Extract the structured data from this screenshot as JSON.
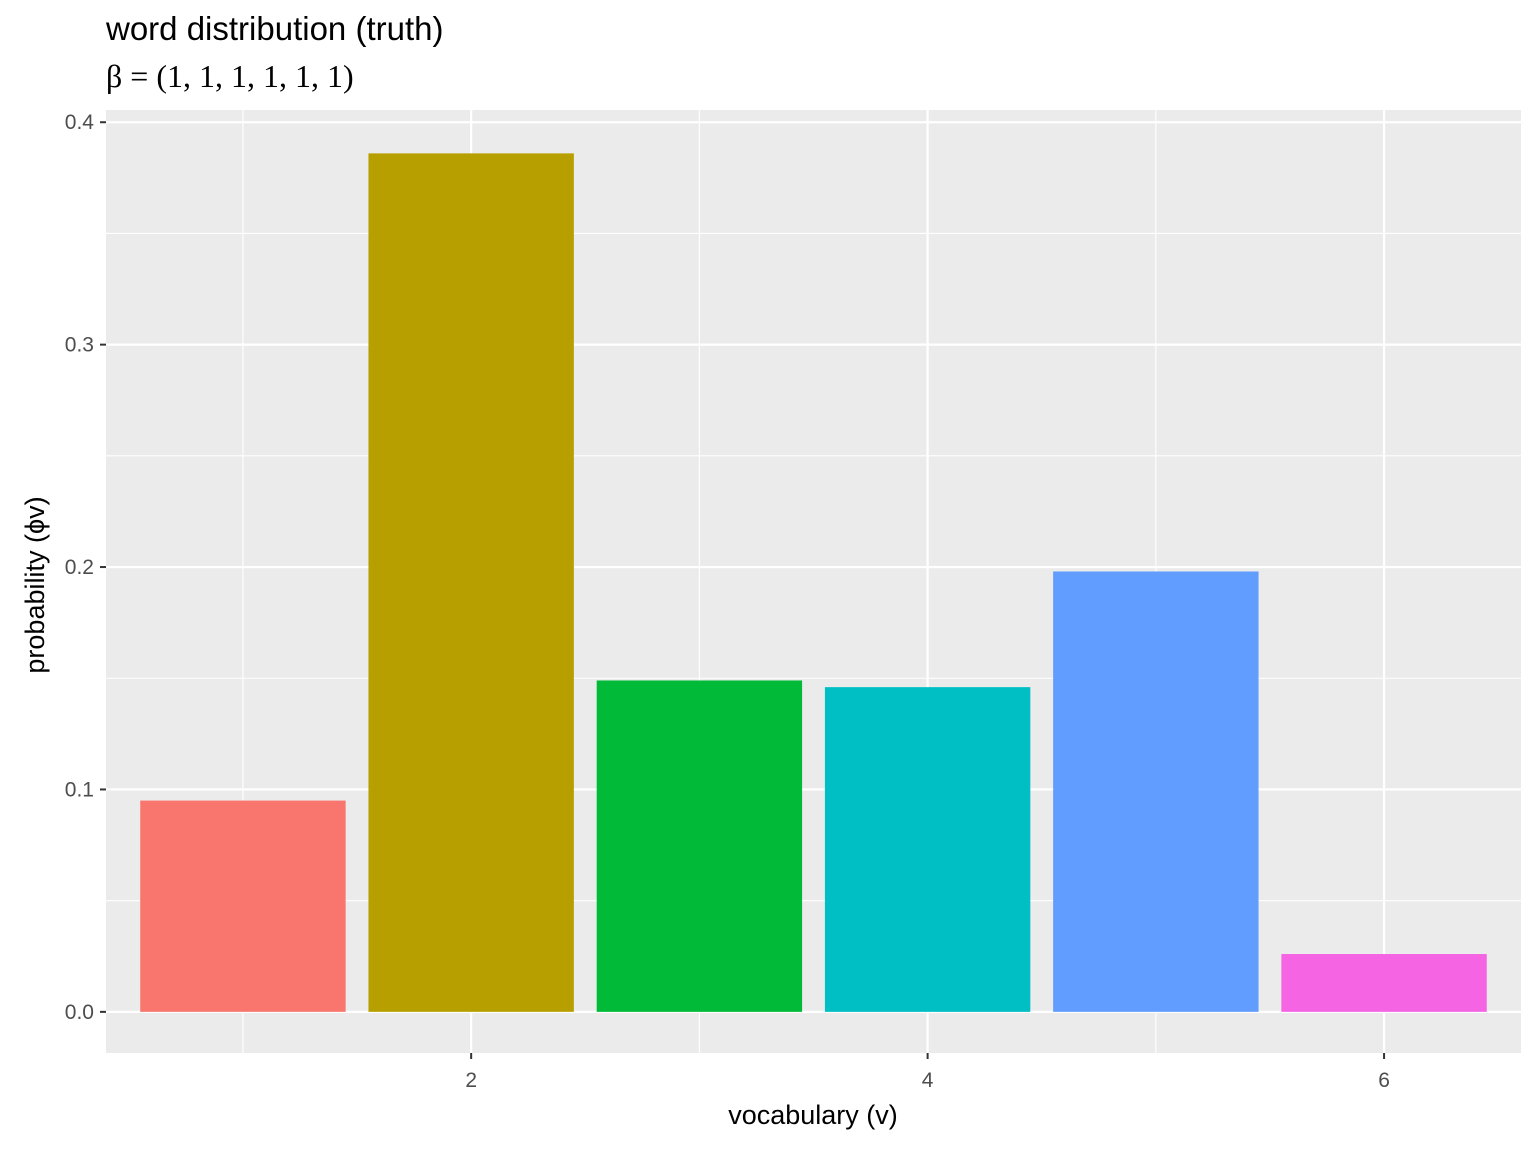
{
  "chart_data": {
    "type": "bar",
    "title": "word distribution (truth)",
    "subtitle": "β = (1, 1, 1, 1, 1, 1)",
    "x": [
      1,
      2,
      3,
      4,
      5,
      6
    ],
    "values": [
      0.095,
      0.386,
      0.149,
      0.146,
      0.198,
      0.026
    ],
    "colors": [
      "#F8766D",
      "#B79F00",
      "#00BA38",
      "#00BFC4",
      "#619CFF",
      "#F564E3"
    ],
    "xlabel": "vocabulary (v)",
    "ylabel": "probability (ϕv)",
    "xlim": [
      0.4,
      6.6
    ],
    "ylim": [
      -0.0185,
      0.4055
    ],
    "xticks": [
      2,
      4,
      6
    ],
    "yticks": [
      0.0,
      0.1,
      0.2,
      0.3,
      0.4
    ],
    "ytick_labels": [
      "0.0",
      "0.1",
      "0.2",
      "0.3",
      "0.4"
    ],
    "grid": true,
    "legend": "none",
    "panel_background": "#EBEBEB"
  }
}
